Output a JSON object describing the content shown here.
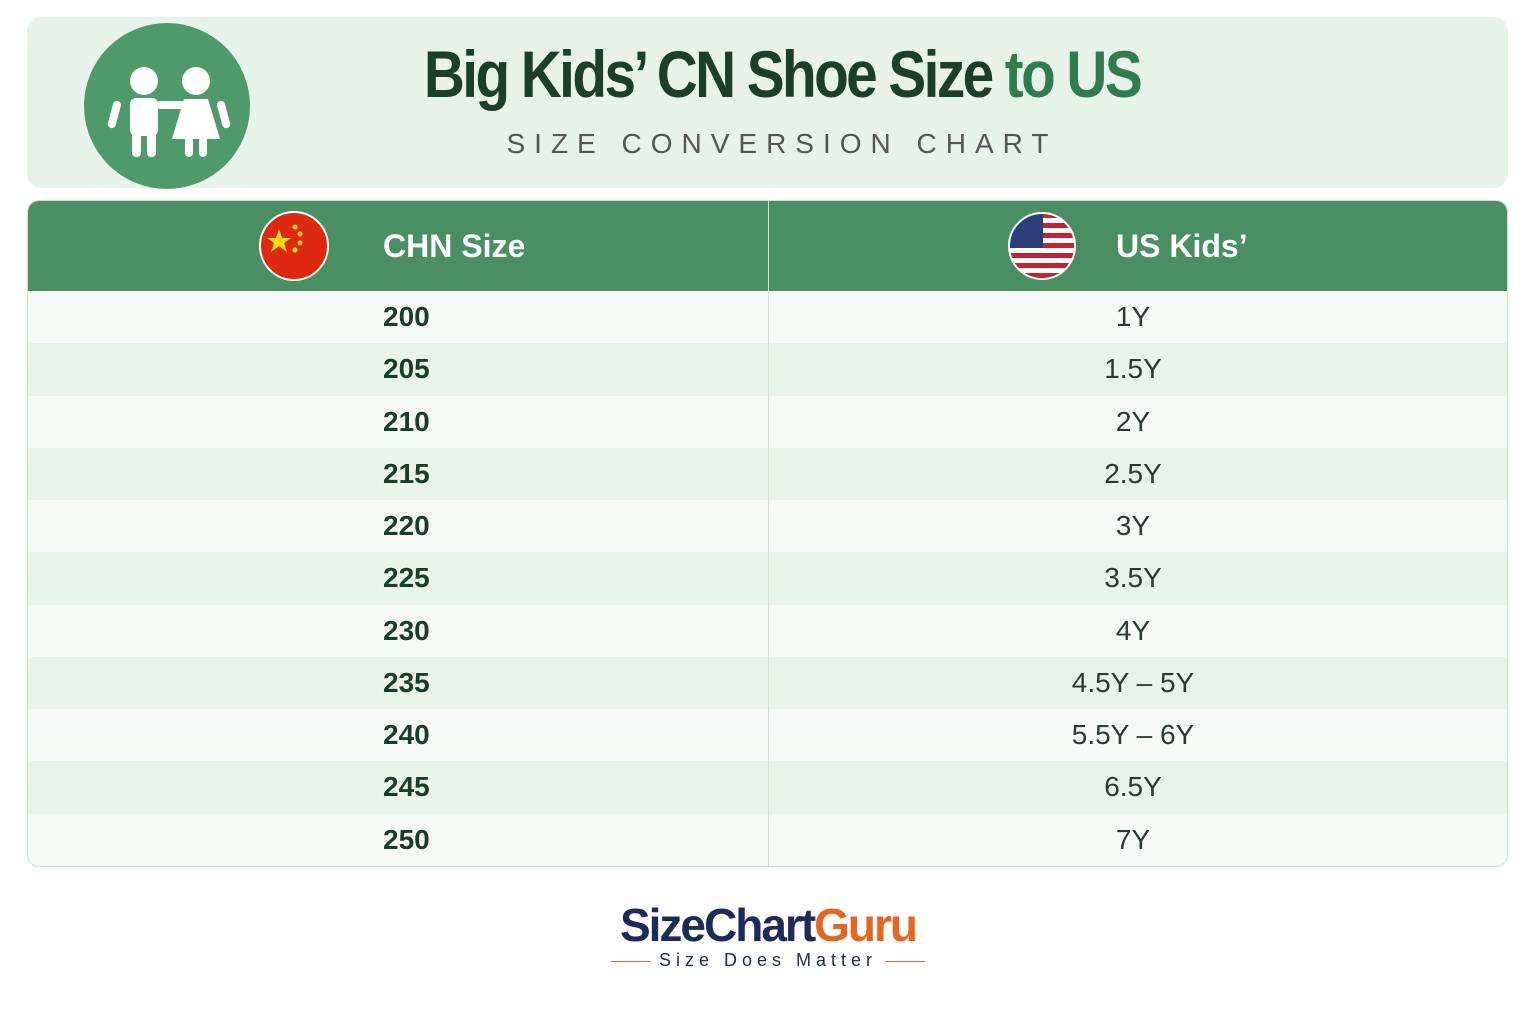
{
  "header": {
    "title_main": "Big Kids’ CN Shoe Size",
    "title_accent": "to US",
    "subtitle": "SIZE CONVERSION CHART"
  },
  "table": {
    "columns": [
      "CHN Size",
      "US Kids’"
    ],
    "rows": [
      [
        "200",
        "1Y"
      ],
      [
        "205",
        "1.5Y"
      ],
      [
        "210",
        "2Y"
      ],
      [
        "215",
        "2.5Y"
      ],
      [
        "220",
        "3Y"
      ],
      [
        "225",
        "3.5Y"
      ],
      [
        "230",
        "4Y"
      ],
      [
        "235",
        "4.5Y – 5Y"
      ],
      [
        "240",
        "5.5Y – 6Y"
      ],
      [
        "245",
        "6.5Y"
      ],
      [
        "250",
        "7Y"
      ]
    ]
  },
  "footer": {
    "brand_main": "SizeChart",
    "brand_accent": "Guru",
    "tagline": "Size Does Matter"
  }
}
